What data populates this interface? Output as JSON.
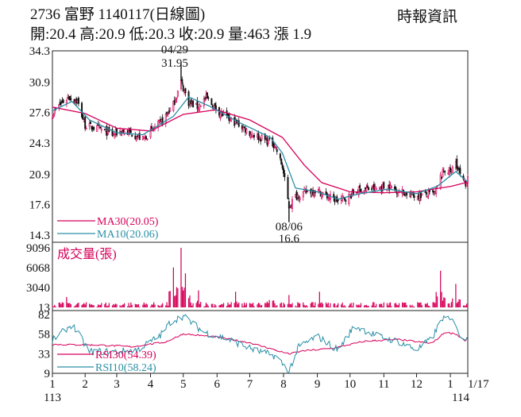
{
  "header": {
    "title": "2736  富野 1140117(日線圖)",
    "quote": "開:20.4 高:20.9 低:20.3 收:20.9 量:463 漲 1.9",
    "source": "時報資訊"
  },
  "colors": {
    "up": "#d6005a",
    "down": "#111111",
    "ma30": "#d6005a",
    "ma10": "#2a8fa6",
    "rsi30": "#d6005a",
    "rsi10": "#2a8fa6",
    "volume": "#d6005a"
  },
  "chart_data": [
    {
      "type": "candlestick",
      "title": "2736 富野 1140117(日線圖)",
      "y_ticks": [
        "34.3",
        "30.9",
        "27.6",
        "24.3",
        "20.9",
        "17.6",
        "14.3"
      ],
      "ylim": [
        14.3,
        34.3
      ],
      "x_ticks": [
        "1",
        "2",
        "3",
        "4",
        "5",
        "6",
        "7",
        "8",
        "9",
        "10",
        "11",
        "12",
        "1",
        "1/17"
      ],
      "x_sublabels": [
        "113",
        "114"
      ],
      "annotations": [
        {
          "label_date": "04/29",
          "label_value": "31.95",
          "date": "2024-04-29",
          "value": 31.95
        },
        {
          "label_date": "08/06",
          "label_value": "16.6",
          "date": "2024-08-06",
          "value": 16.6
        }
      ],
      "legend": [
        {
          "label": "MA30(20.05)",
          "series": "MA30"
        },
        {
          "label": "MA10(20.06)",
          "series": "MA10"
        }
      ],
      "price_path": [
        [
          "2024-01-02",
          27.4
        ],
        [
          "2024-01-10",
          28.6
        ],
        [
          "2024-01-17",
          29.3
        ],
        [
          "2024-01-25",
          28.8
        ],
        [
          "2024-02-01",
          26.2
        ],
        [
          "2024-02-15",
          25.8
        ],
        [
          "2024-02-26",
          25.2
        ],
        [
          "2024-03-05",
          25.6
        ],
        [
          "2024-03-15",
          25.3
        ],
        [
          "2024-03-25",
          24.7
        ],
        [
          "2024-04-02",
          25.6
        ],
        [
          "2024-04-12",
          26.7
        ],
        [
          "2024-04-22",
          28.5
        ],
        [
          "2024-04-29",
          30.9
        ],
        [
          "2024-05-06",
          28.7
        ],
        [
          "2024-05-14",
          28.2
        ],
        [
          "2024-05-22",
          29.2
        ],
        [
          "2024-05-31",
          28.0
        ],
        [
          "2024-06-10",
          27.0
        ],
        [
          "2024-06-20",
          26.4
        ],
        [
          "2024-07-01",
          25.4
        ],
        [
          "2024-07-12",
          24.8
        ],
        [
          "2024-07-24",
          24.1
        ],
        [
          "2024-07-31",
          21.7
        ],
        [
          "2024-08-06",
          17.4
        ],
        [
          "2024-08-12",
          18.5
        ],
        [
          "2024-08-22",
          19.0
        ],
        [
          "2024-08-31",
          19.2
        ],
        [
          "2024-09-10",
          18.5
        ],
        [
          "2024-09-20",
          18.0
        ],
        [
          "2024-09-30",
          18.5
        ],
        [
          "2024-10-10",
          19.3
        ],
        [
          "2024-10-25",
          19.3
        ],
        [
          "2024-11-05",
          19.6
        ],
        [
          "2024-11-15",
          19.1
        ],
        [
          "2024-11-28",
          18.6
        ],
        [
          "2024-12-10",
          18.7
        ],
        [
          "2024-12-18",
          18.8
        ],
        [
          "2024-12-23",
          20.6
        ],
        [
          "2024-12-27",
          21.4
        ],
        [
          "2025-01-02",
          21.2
        ],
        [
          "2025-01-06",
          22.3
        ],
        [
          "2025-01-10",
          20.8
        ],
        [
          "2025-01-15",
          19.6
        ],
        [
          "2025-01-17",
          20.9
        ]
      ],
      "ma30_path": [
        [
          "2024-01-02",
          28.2
        ],
        [
          "2024-02-01",
          27.5
        ],
        [
          "2024-03-01",
          25.9
        ],
        [
          "2024-04-01",
          25.6
        ],
        [
          "2024-05-01",
          27.4
        ],
        [
          "2024-05-31",
          27.9
        ],
        [
          "2024-07-01",
          26.8
        ],
        [
          "2024-07-31",
          24.9
        ],
        [
          "2024-08-20",
          21.9
        ],
        [
          "2024-09-05",
          20.0
        ],
        [
          "2024-10-01",
          19.0
        ],
        [
          "2024-11-01",
          18.9
        ],
        [
          "2024-12-01",
          19.0
        ],
        [
          "2025-01-02",
          19.6
        ],
        [
          "2025-01-17",
          20.05
        ]
      ],
      "ma10_path": [
        [
          "2024-01-02",
          27.8
        ],
        [
          "2024-01-20",
          28.8
        ],
        [
          "2024-02-05",
          26.8
        ],
        [
          "2024-03-01",
          25.4
        ],
        [
          "2024-03-25",
          25.2
        ],
        [
          "2024-04-22",
          27.2
        ],
        [
          "2024-05-06",
          29.3
        ],
        [
          "2024-05-25",
          28.3
        ],
        [
          "2024-06-20",
          26.6
        ],
        [
          "2024-07-20",
          24.9
        ],
        [
          "2024-07-31",
          23.2
        ],
        [
          "2024-08-12",
          19.4
        ],
        [
          "2024-09-01",
          19.0
        ],
        [
          "2024-09-20",
          18.2
        ],
        [
          "2024-10-10",
          18.8
        ],
        [
          "2024-11-05",
          19.3
        ],
        [
          "2024-12-01",
          18.8
        ],
        [
          "2024-12-20",
          19.6
        ],
        [
          "2025-01-06",
          21.2
        ],
        [
          "2025-01-17",
          20.06
        ]
      ]
    },
    {
      "type": "bar",
      "title": "成交量(張)",
      "y_ticks": [
        "9096",
        "6068",
        "3040",
        "13"
      ],
      "ylim": [
        13,
        9096
      ],
      "spikes": [
        [
          "2024-01-15",
          1600
        ],
        [
          "2024-04-22",
          6100
        ],
        [
          "2024-04-29",
          9096
        ],
        [
          "2024-05-03",
          5200
        ],
        [
          "2024-05-15",
          2600
        ],
        [
          "2024-06-18",
          2400
        ],
        [
          "2024-07-20",
          2700
        ],
        [
          "2024-08-06",
          1900
        ],
        [
          "2024-09-03",
          2400
        ],
        [
          "2024-12-23",
          5600
        ],
        [
          "2025-01-06",
          3600
        ]
      ]
    },
    {
      "type": "line",
      "title": "RSI",
      "y_ticks": [
        "82",
        "58",
        "33",
        "9"
      ],
      "ylim": [
        9,
        82
      ],
      "legend": [
        {
          "label": "RSI30(54.39)",
          "series": "RSI30"
        },
        {
          "label": "RSI10(58.24)",
          "series": "RSI10"
        }
      ],
      "rsi30_path": [
        [
          "2024-01-02",
          45
        ],
        [
          "2024-02-15",
          44
        ],
        [
          "2024-03-15",
          42
        ],
        [
          "2024-04-15",
          48
        ],
        [
          "2024-05-01",
          58
        ],
        [
          "2024-06-01",
          54
        ],
        [
          "2024-07-01",
          47
        ],
        [
          "2024-08-06",
          33
        ],
        [
          "2024-08-20",
          37
        ],
        [
          "2024-09-15",
          40
        ],
        [
          "2024-10-15",
          49
        ],
        [
          "2024-11-15",
          51
        ],
        [
          "2024-12-15",
          46
        ],
        [
          "2024-12-27",
          60
        ],
        [
          "2025-01-06",
          58
        ],
        [
          "2025-01-15",
          49
        ],
        [
          "2025-01-17",
          54.39
        ]
      ],
      "rsi10_path": [
        [
          "2024-01-02",
          50
        ],
        [
          "2024-01-20",
          70
        ],
        [
          "2024-02-05",
          36
        ],
        [
          "2024-03-01",
          36
        ],
        [
          "2024-03-20",
          38
        ],
        [
          "2024-04-10",
          56
        ],
        [
          "2024-04-20",
          74
        ],
        [
          "2024-05-01",
          80
        ],
        [
          "2024-05-20",
          60
        ],
        [
          "2024-06-10",
          52
        ],
        [
          "2024-07-05",
          38
        ],
        [
          "2024-07-25",
          30
        ],
        [
          "2024-08-06",
          12
        ],
        [
          "2024-08-15",
          42
        ],
        [
          "2024-09-01",
          55
        ],
        [
          "2024-09-20",
          38
        ],
        [
          "2024-10-05",
          68
        ],
        [
          "2024-10-25",
          56
        ],
        [
          "2024-11-15",
          48
        ],
        [
          "2024-12-01",
          38
        ],
        [
          "2024-12-15",
          52
        ],
        [
          "2024-12-25",
          78
        ],
        [
          "2025-01-06",
          72
        ],
        [
          "2025-01-12",
          46
        ],
        [
          "2025-01-17",
          58.24
        ]
      ]
    }
  ]
}
